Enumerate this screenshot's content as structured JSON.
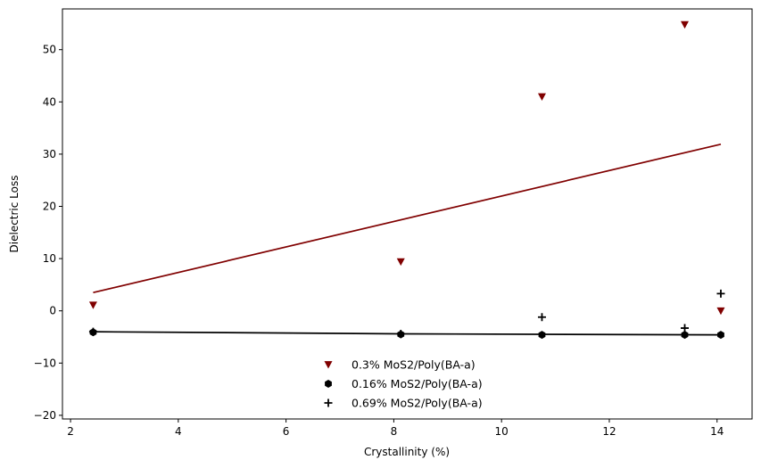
{
  "chart_data": {
    "type": "scatter",
    "title": "",
    "xlabel": "Crystallinity (%)",
    "ylabel": "Dielectric Loss",
    "xlim": [
      1.85,
      14.65
    ],
    "ylim": [
      -20.7,
      57.8
    ],
    "xticks": [
      2,
      4,
      6,
      8,
      10,
      12,
      14
    ],
    "yticks": [
      -20,
      -10,
      0,
      10,
      20,
      30,
      40,
      50
    ],
    "grid": false,
    "legend_position": "bottom-center",
    "series": [
      {
        "name": "0.3% MoS2/Poly(BA-a)",
        "marker": "triangle-down",
        "color": "#800000",
        "points": [
          [
            2.42,
            1.1
          ],
          [
            8.13,
            9.4
          ],
          [
            10.75,
            41.0
          ],
          [
            13.4,
            54.8
          ],
          [
            14.07,
            0.0
          ]
        ],
        "fit": [
          [
            2.42,
            3.5
          ],
          [
            14.07,
            31.9
          ]
        ]
      },
      {
        "name": "0.16% MoS2/Poly(BA-a)",
        "marker": "hexagon",
        "color": "#000000",
        "points": [
          [
            2.42,
            -4.1
          ],
          [
            8.13,
            -4.5
          ],
          [
            10.75,
            -4.6
          ],
          [
            13.4,
            -4.6
          ],
          [
            14.07,
            -4.6
          ]
        ],
        "fit": [
          [
            2.42,
            -4.0
          ],
          [
            8.13,
            -4.4
          ],
          [
            14.07,
            -4.6
          ]
        ]
      },
      {
        "name": "0.69% MoS2/Poly(BA-a)",
        "marker": "plus",
        "color": "#000000",
        "points": [
          [
            2.42,
            -4.0
          ],
          [
            8.13,
            -4.4
          ],
          [
            10.75,
            -1.2
          ],
          [
            13.4,
            -3.3
          ],
          [
            14.07,
            3.3
          ]
        ]
      }
    ]
  }
}
